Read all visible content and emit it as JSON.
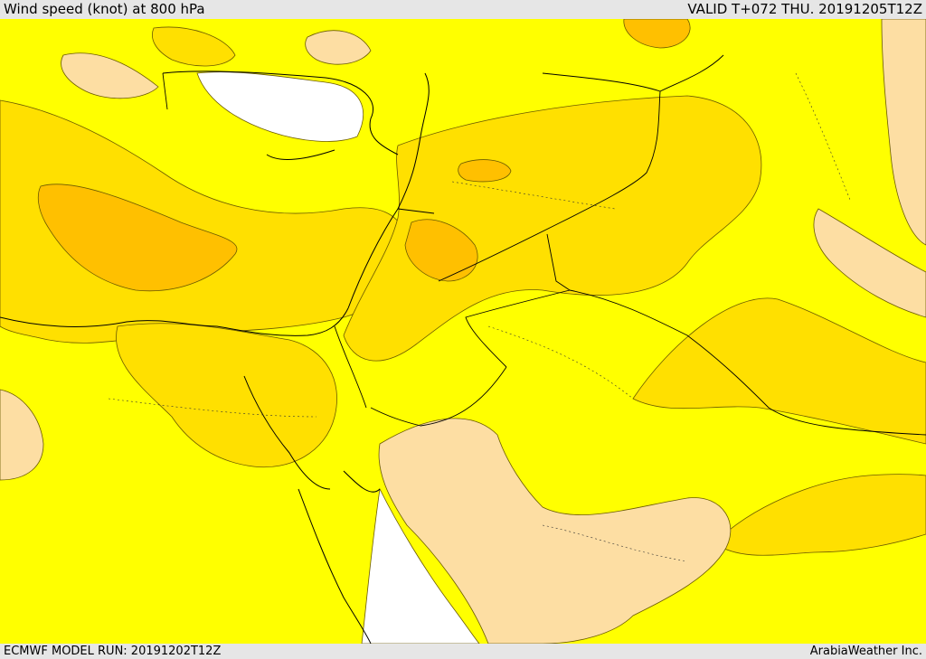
{
  "header": {
    "title": "Wind speed (knot) at 800 hPa",
    "valid": "VALID T+072 THU. 20191205T12Z"
  },
  "footer": {
    "model_run": "ECMWF MODEL RUN: 20191202T12Z",
    "credit": "ArabiaWeather Inc."
  },
  "map": {
    "colors": {
      "calm": "#ffffff",
      "light": "#fddea3",
      "moderate": "#ffff00",
      "fresh": "#ffe000",
      "strong": "#ffc000",
      "borders": "#000000"
    }
  }
}
